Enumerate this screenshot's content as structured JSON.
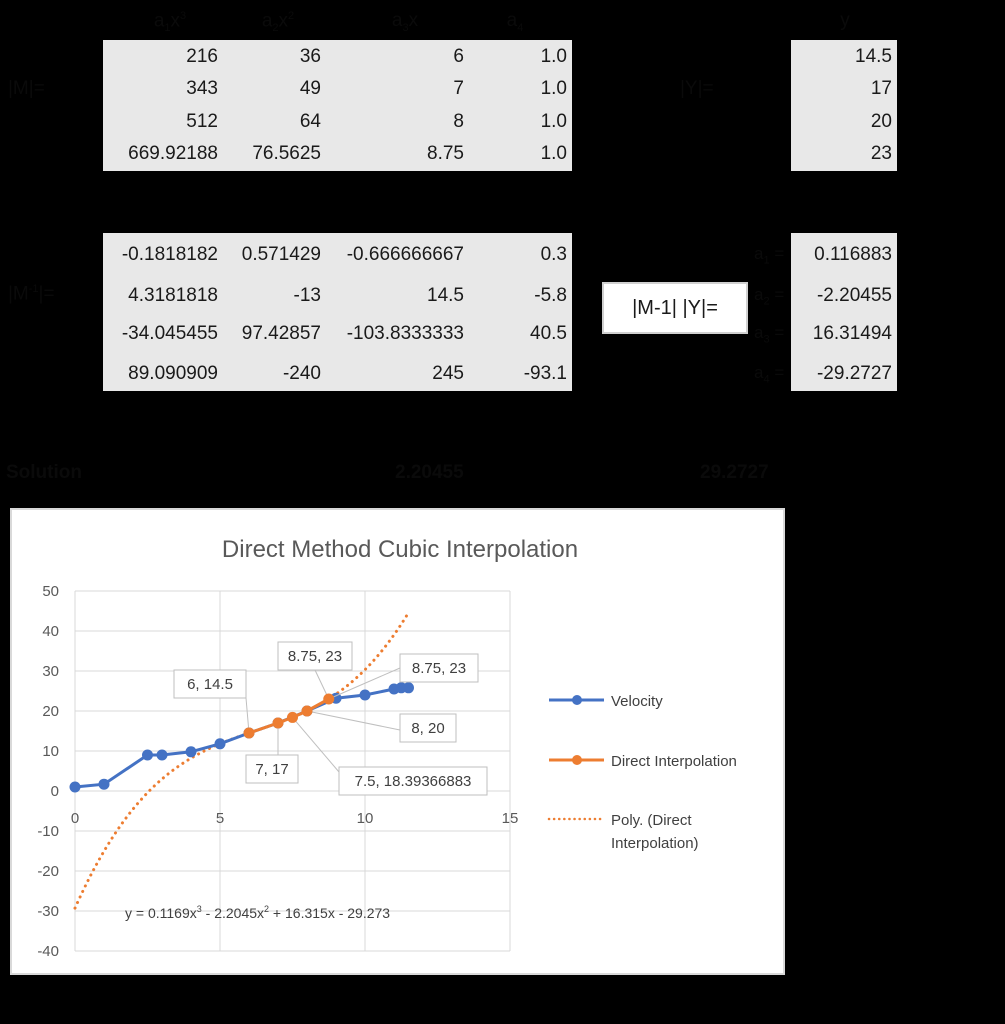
{
  "matrix_m": {
    "label": "|M|=",
    "headers": [
      "a1x3",
      "a2x2",
      "a3x",
      "a4"
    ],
    "header_parts": [
      {
        "base": "a",
        "sub": "1",
        "var": "x",
        "sup": "3"
      },
      {
        "base": "a",
        "sub": "2",
        "var": "x",
        "sup": "2"
      },
      {
        "base": "a",
        "sub": "3",
        "var": "x",
        "sup": ""
      },
      {
        "base": "a",
        "sub": "4",
        "var": "",
        "sup": ""
      }
    ],
    "rows": [
      [
        "216",
        "36",
        "6",
        "1.0"
      ],
      [
        "343",
        "49",
        "7",
        "1.0"
      ],
      [
        "512",
        "64",
        "8",
        "1.0"
      ],
      [
        "669.92188",
        "76.5625",
        "8.75",
        "1.0"
      ]
    ]
  },
  "matrix_y": {
    "label": "|Y|=",
    "header": "y",
    "values": [
      "14.5",
      "17",
      "20",
      "23"
    ]
  },
  "matrix_m_inv": {
    "label": "|M-1|=",
    "rows": [
      [
        "-0.1818182",
        "0.571429",
        "-0.666666667",
        "0.3"
      ],
      [
        "4.3181818",
        "-13",
        "14.5",
        "-5.8"
      ],
      [
        "-34.045455",
        "97.42857",
        "-103.8333333",
        "40.5"
      ],
      [
        "89.090909",
        "-240",
        "245",
        "-93.1"
      ]
    ]
  },
  "product": {
    "button_label": "|M-1| |Y|=",
    "coef_labels": [
      "a1 =",
      "a2 =",
      "a3 =",
      "a4 ="
    ],
    "values": [
      "0.116883",
      "-2.20455",
      "16.31494",
      "-29.2727"
    ]
  },
  "solution": {
    "label": "Solution",
    "value_1": "2.20455",
    "value_2": "29.2727"
  },
  "chart_data": {
    "type": "scatter",
    "title": "Direct Method Cubic Interpolation",
    "xlabel": "",
    "ylabel": "",
    "xlim": [
      0,
      15
    ],
    "ylim": [
      -40,
      50
    ],
    "x_ticks": [
      "0",
      "5",
      "10",
      "15"
    ],
    "y_ticks": [
      "50",
      "40",
      "30",
      "20",
      "10",
      "0",
      "-10",
      "-20",
      "-30",
      "-40"
    ],
    "grid": true,
    "legend_position": "right",
    "series": [
      {
        "name": "Velocity",
        "color": "#4472c4",
        "style": "line-marker",
        "x": [
          0,
          1,
          2.5,
          3,
          4,
          5,
          6,
          7,
          8,
          9,
          10,
          11,
          11.25,
          11.5
        ],
        "y": [
          1,
          1.7,
          9,
          9,
          9.8,
          11.8,
          14.5,
          17,
          20,
          23.2,
          24,
          25.5,
          25.8,
          25.8
        ]
      },
      {
        "name": "Direct Interpolation",
        "color": "#ed7d31",
        "style": "line-marker",
        "x": [
          6,
          7,
          7.5,
          8,
          8.75
        ],
        "y": [
          14.5,
          17,
          18.39366883,
          20,
          23
        ]
      },
      {
        "name": "Poly. (Direct Interpolation)",
        "color": "#ed7d31",
        "style": "dotted-trendline",
        "equation": "y = 0.1169x³ - 2.2045x² + 16.315x - 29.273",
        "coefficients": [
          0.1169,
          -2.2045,
          16.315,
          -29.273
        ],
        "x_range": [
          0,
          11.5
        ]
      }
    ],
    "data_labels": [
      {
        "text": "6, 14.5",
        "point": [
          6,
          14.5
        ]
      },
      {
        "text": "7, 17",
        "point": [
          7,
          17
        ]
      },
      {
        "text": "7.5, 18.39366883",
        "point": [
          7.5,
          18.39366883
        ]
      },
      {
        "text": "8, 20",
        "point": [
          8,
          20
        ]
      },
      {
        "text": "8.75, 23",
        "point": [
          8.75,
          23
        ]
      },
      {
        "text": "8.75, 23",
        "point": [
          8.75,
          23
        ]
      }
    ],
    "legend": [
      {
        "label": "Velocity"
      },
      {
        "label": "Direct Interpolation"
      },
      {
        "label": "Poly. (Direct",
        "label2": "Interpolation)"
      }
    ]
  }
}
